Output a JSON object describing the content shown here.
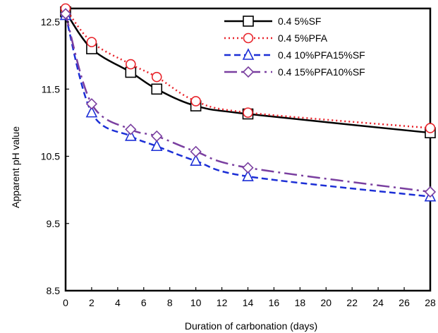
{
  "chart_data": {
    "type": "line",
    "title": "",
    "xlabel": "Duration of carbonation (days)",
    "ylabel": "Apparent pH value",
    "xlim": [
      0,
      28
    ],
    "ylim": [
      8.5,
      12.7
    ],
    "x_ticks": [
      "0",
      "2",
      "4",
      "6",
      "8",
      "10",
      "12",
      "14",
      "16",
      "18",
      "20",
      "22",
      "24",
      "26",
      "28"
    ],
    "y_ticks": [
      "8.5",
      "9.5",
      "10.5",
      "11.5",
      "12.5"
    ],
    "grid": false,
    "legend_position": "top-right",
    "series": [
      {
        "name": "0.4 5%SF",
        "color": "#000000",
        "marker": "square",
        "line_style": "solid",
        "x": [
          0,
          2,
          5,
          7,
          10,
          14,
          28
        ],
        "values": [
          12.65,
          12.1,
          11.75,
          11.5,
          11.25,
          11.13,
          10.85
        ]
      },
      {
        "name": "0.4 5%PFA",
        "color": "#e8232a",
        "marker": "circle",
        "line_style": "dotted",
        "x": [
          0,
          2,
          5,
          7,
          10,
          14,
          28
        ],
        "values": [
          12.7,
          12.2,
          11.87,
          11.68,
          11.32,
          11.15,
          10.92
        ]
      },
      {
        "name": "0.4 10%PFA15%SF",
        "color": "#1c2fd6",
        "marker": "triangle",
        "line_style": "dashed",
        "x": [
          0,
          2,
          5,
          7,
          10,
          14,
          28
        ],
        "values": [
          12.6,
          11.15,
          10.8,
          10.65,
          10.43,
          10.2,
          9.9
        ]
      },
      {
        "name": "0.4 15%PFA10%SF",
        "color": "#7a3fa0",
        "marker": "diamond",
        "line_style": "dashdot",
        "x": [
          0,
          2,
          5,
          7,
          10,
          14,
          28
        ],
        "values": [
          12.62,
          11.28,
          10.9,
          10.8,
          10.57,
          10.33,
          9.97
        ]
      }
    ]
  }
}
